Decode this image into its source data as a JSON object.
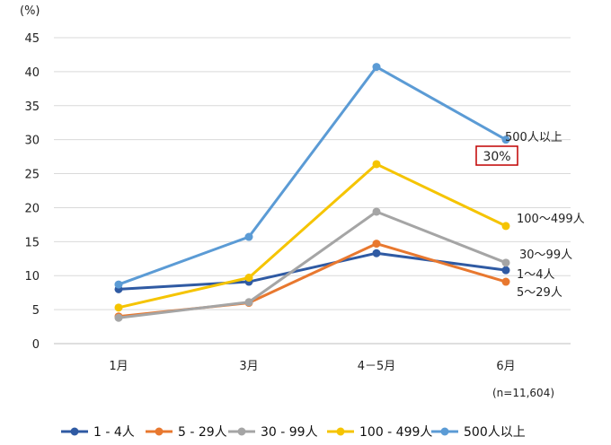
{
  "chart_data": {
    "type": "line",
    "y_unit": "(%)",
    "categories": [
      "1月",
      "3月",
      "4－5月",
      "6月"
    ],
    "ylim": [
      0,
      45
    ],
    "yticks": [
      0,
      5,
      10,
      15,
      20,
      25,
      30,
      35,
      40,
      45
    ],
    "grid": "horizontal",
    "legend_position": "bottom",
    "sample_note": "(n=11,604)",
    "series": [
      {
        "name": "1 - 4人",
        "end_label": "1～4人",
        "color": "#2f5aa3",
        "values": [
          8.0,
          9.1,
          13.3,
          10.8
        ]
      },
      {
        "name": "5 - 29人",
        "end_label": "5～29人",
        "color": "#e8782f",
        "values": [
          4.0,
          6.0,
          14.7,
          9.1
        ]
      },
      {
        "name": "30 - 99人",
        "end_label": "30～99人",
        "color": "#a5a5a5",
        "values": [
          3.8,
          6.1,
          19.4,
          11.9
        ]
      },
      {
        "name": "100 - 499人",
        "end_label": "100～499人",
        "color": "#f5c400",
        "values": [
          5.3,
          9.7,
          26.4,
          17.3
        ]
      },
      {
        "name": "500人以上",
        "end_label": "500人以上",
        "color": "#5b9bd5",
        "values": [
          8.7,
          15.7,
          40.7,
          30.0
        ]
      }
    ],
    "annotation": {
      "text": "30%",
      "color": "#c00000"
    }
  }
}
